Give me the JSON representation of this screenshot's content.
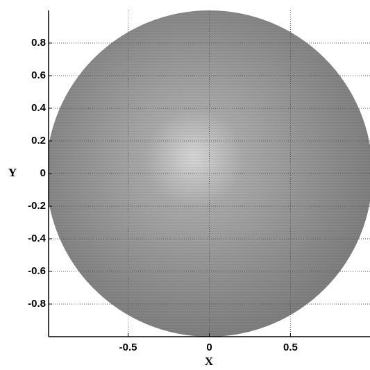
{
  "chart_data": {
    "type": "image",
    "xlabel": "X",
    "ylabel": "Y",
    "xlim": [
      -0.99,
      0.99
    ],
    "ylim": [
      -1,
      1
    ],
    "xticks": [
      -0.5,
      0,
      0.5
    ],
    "yticks": [
      -0.8,
      -0.6,
      -0.4,
      -0.2,
      0,
      0.2,
      0.4,
      0.6,
      0.8
    ],
    "grid": true
  }
}
